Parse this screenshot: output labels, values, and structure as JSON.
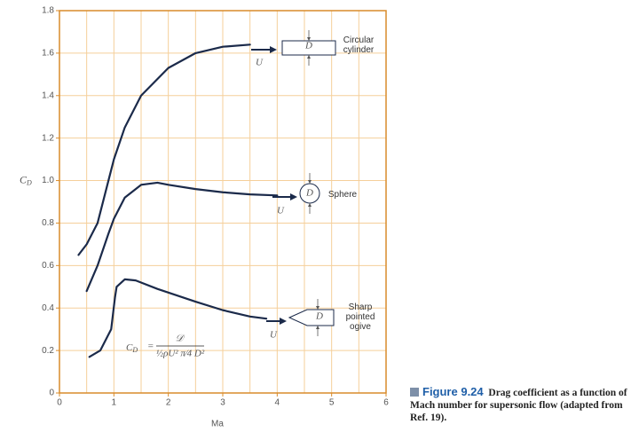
{
  "chart_data": {
    "type": "line",
    "xlabel": "Ma",
    "ylabel": {
      "main": "C",
      "sub": "D"
    },
    "xlim": [
      0,
      6
    ],
    "ylim": [
      0,
      1.8
    ],
    "xticks": [
      0,
      1,
      2,
      3,
      4,
      5,
      6
    ],
    "yticks": [
      0,
      0.2,
      0.4,
      0.6,
      0.8,
      {
        "value": 1,
        "label": "1.0"
      },
      1.2,
      1.4,
      1.6,
      1.8
    ],
    "xgrid": [
      0.5,
      1,
      1.5,
      2,
      2.5,
      3,
      3.5,
      4,
      4.5,
      5,
      5.5
    ],
    "grid": true,
    "frame_color": "#d98b2b",
    "grid_color": "#f5cf9a",
    "series": [
      {
        "name": "Circular cylinder",
        "color": "#1b2a4a",
        "x": [
          0.35,
          0.5,
          0.7,
          0.9,
          1.0,
          1.2,
          1.5,
          2.0,
          2.5,
          3.0,
          3.5
        ],
        "values": [
          0.65,
          0.7,
          0.8,
          1.0,
          1.1,
          1.25,
          1.4,
          1.53,
          1.6,
          1.63,
          1.64
        ]
      },
      {
        "name": "Sphere",
        "color": "#1b2a4a",
        "x": [
          0.5,
          0.7,
          0.9,
          1.0,
          1.2,
          1.5,
          1.8,
          2.0,
          2.5,
          3.0,
          3.5,
          4.0
        ],
        "values": [
          0.48,
          0.6,
          0.75,
          0.82,
          0.92,
          0.98,
          0.99,
          0.98,
          0.96,
          0.945,
          0.935,
          0.93
        ]
      },
      {
        "name": "Sharp pointed ogive",
        "color": "#1b2a4a",
        "x": [
          0.55,
          0.75,
          0.95,
          1.02,
          1.05,
          1.2,
          1.4,
          1.8,
          2.5,
          3.0,
          3.5,
          3.8
        ],
        "values": [
          0.17,
          0.2,
          0.3,
          0.45,
          0.5,
          0.535,
          0.53,
          0.49,
          0.43,
          0.39,
          0.36,
          0.35
        ]
      }
    ],
    "flow_label": "U",
    "size_label": "D",
    "formula": {
      "lhs": "C",
      "lhs_sub": "D",
      "eq": "=",
      "numerator": "𝒟",
      "denominator": "½ρU² π⁄4 D²"
    }
  },
  "caption": {
    "label": "Figure 9.24",
    "text": "Drag coefficient as a function of Mach number for supersonic flow (adapted from Ref. 19)."
  }
}
